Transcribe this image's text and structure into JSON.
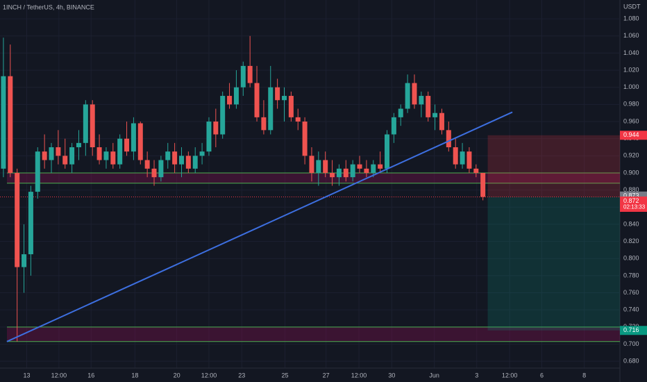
{
  "chart_data": {
    "type": "candlestick",
    "title": "1INCH / TetherUS, 4h, BINANCE",
    "y_unit": "USDT",
    "open": [
      0.905,
      1.013,
      0.9,
      0.79,
      0.805,
      0.878,
      0.925,
      0.915,
      0.93,
      0.92,
      0.91,
      0.93,
      0.935,
      0.98,
      0.93,
      0.915,
      0.925,
      0.91,
      0.94,
      0.925,
      0.958,
      0.915,
      0.905,
      0.895,
      0.915,
      0.925,
      0.91,
      0.92,
      0.905,
      0.92,
      0.925,
      0.96,
      0.945,
      0.99,
      0.98,
      1.0,
      1.025,
      1.005,
      0.965,
      0.95,
      1.0,
      0.985,
      0.99,
      0.965,
      0.96,
      0.92,
      0.9,
      0.915,
      0.9,
      0.895,
      0.905,
      0.895,
      0.91,
      0.905,
      0.9,
      0.91,
      0.905,
      0.945,
      0.965,
      0.975,
      1.005,
      0.98,
      0.99,
      0.965,
      0.97,
      0.95,
      0.93,
      0.91,
      0.925,
      0.905,
      0.9
    ],
    "high": [
      1.058,
      1.05,
      0.905,
      0.84,
      0.885,
      0.93,
      0.945,
      0.935,
      0.95,
      0.94,
      0.935,
      0.95,
      0.985,
      0.985,
      0.945,
      0.93,
      0.935,
      0.945,
      0.96,
      0.965,
      0.96,
      0.925,
      0.915,
      0.92,
      0.935,
      0.935,
      0.93,
      0.925,
      0.93,
      0.935,
      0.965,
      0.975,
      0.995,
      1.005,
      1.02,
      1.03,
      1.06,
      1.025,
      0.985,
      1.025,
      1.01,
      1.0,
      0.995,
      0.975,
      0.965,
      0.93,
      0.925,
      0.925,
      0.915,
      0.91,
      0.915,
      0.915,
      0.92,
      0.915,
      0.915,
      0.925,
      0.95,
      0.97,
      0.98,
      1.015,
      1.015,
      0.995,
      0.995,
      0.98,
      0.975,
      0.96,
      0.94,
      0.935,
      0.93,
      0.91,
      0.9
    ],
    "low": [
      0.895,
      0.895,
      0.703,
      0.76,
      0.78,
      0.87,
      0.905,
      0.9,
      0.91,
      0.905,
      0.9,
      0.915,
      0.92,
      0.92,
      0.91,
      0.905,
      0.905,
      0.905,
      0.92,
      0.915,
      0.91,
      0.895,
      0.885,
      0.89,
      0.905,
      0.9,
      0.895,
      0.9,
      0.9,
      0.91,
      0.92,
      0.93,
      0.94,
      0.975,
      0.975,
      0.99,
      1.0,
      0.96,
      0.945,
      0.945,
      0.975,
      0.96,
      0.96,
      0.95,
      0.91,
      0.89,
      0.885,
      0.895,
      0.885,
      0.885,
      0.89,
      0.89,
      0.9,
      0.895,
      0.895,
      0.9,
      0.9,
      0.935,
      0.955,
      0.97,
      0.975,
      0.965,
      0.96,
      0.95,
      0.945,
      0.925,
      0.905,
      0.905,
      0.9,
      0.895,
      0.868
    ],
    "close": [
      1.013,
      0.9,
      0.79,
      0.805,
      0.878,
      0.925,
      0.915,
      0.93,
      0.92,
      0.91,
      0.93,
      0.935,
      0.98,
      0.93,
      0.915,
      0.925,
      0.91,
      0.94,
      0.925,
      0.958,
      0.915,
      0.905,
      0.895,
      0.915,
      0.925,
      0.91,
      0.92,
      0.905,
      0.92,
      0.925,
      0.96,
      0.945,
      0.99,
      0.98,
      1.0,
      1.025,
      1.005,
      0.965,
      0.95,
      1.0,
      0.985,
      0.99,
      0.965,
      0.96,
      0.92,
      0.9,
      0.915,
      0.9,
      0.895,
      0.905,
      0.895,
      0.91,
      0.905,
      0.9,
      0.91,
      0.905,
      0.945,
      0.965,
      0.975,
      1.005,
      0.98,
      0.99,
      0.965,
      0.97,
      0.95,
      0.93,
      0.91,
      0.925,
      0.905,
      0.9,
      0.872
    ],
    "up_color": "#26a69a",
    "down_color": "#ef5350",
    "xlim": [
      -0.5,
      90
    ],
    "xticks": [
      {
        "value": 3.4,
        "label": "13"
      },
      {
        "value": 8.1,
        "label": "12:00"
      },
      {
        "value": 12.8,
        "label": "16"
      },
      {
        "value": 19.2,
        "label": "18"
      },
      {
        "value": 25.3,
        "label": "20"
      },
      {
        "value": 30.0,
        "label": "12:00"
      },
      {
        "value": 34.8,
        "label": "23"
      },
      {
        "value": 41.1,
        "label": "25"
      },
      {
        "value": 47.1,
        "label": "27"
      },
      {
        "value": 51.9,
        "label": "12:00"
      },
      {
        "value": 56.7,
        "label": "30"
      },
      {
        "value": 62.9,
        "label": "Jun"
      },
      {
        "value": 69.1,
        "label": "3"
      },
      {
        "value": 73.9,
        "label": "12:00"
      },
      {
        "value": 78.6,
        "label": "6"
      },
      {
        "value": 84.8,
        "label": "8"
      }
    ],
    "ylim": [
      0.672,
      1.102
    ],
    "yticks": [
      {
        "value": 0.68,
        "label": "0.680"
      },
      {
        "value": 0.7,
        "label": "0.700"
      },
      {
        "value": 0.72,
        "label": "0.720"
      },
      {
        "value": 0.74,
        "label": "0.740"
      },
      {
        "value": 0.76,
        "label": "0.760"
      },
      {
        "value": 0.78,
        "label": "0.780"
      },
      {
        "value": 0.8,
        "label": "0.800"
      },
      {
        "value": 0.82,
        "label": "0.820"
      },
      {
        "value": 0.84,
        "label": "0.840"
      },
      {
        "value": 0.86,
        "label": "0.860"
      },
      {
        "value": 0.88,
        "label": "0.880"
      },
      {
        "value": 0.9,
        "label": "0.900"
      },
      {
        "value": 0.92,
        "label": "0.920"
      },
      {
        "value": 0.94,
        "label": "0.940"
      },
      {
        "value": 0.96,
        "label": "0.960"
      },
      {
        "value": 0.98,
        "label": "0.980"
      },
      {
        "value": 1.0,
        "label": "1.000"
      },
      {
        "value": 1.02,
        "label": "1.020"
      },
      {
        "value": 1.04,
        "label": "1.040"
      },
      {
        "value": 1.06,
        "label": "1.060"
      },
      {
        "value": 1.08,
        "label": "1.080"
      }
    ],
    "grid": true,
    "zones": [
      {
        "low": 0.888,
        "high": 0.9
      },
      {
        "low": 0.703,
        "high": 0.72
      }
    ],
    "trendline": {
      "x": [
        0.5,
        74.3
      ],
      "y": [
        0.703,
        0.971
      ],
      "color": "#3d6fe0"
    },
    "position": {
      "x_start": 70.7,
      "stop": 0.944,
      "entry": 0.872,
      "target": 0.716
    },
    "price_tags": [
      {
        "value": 0.944,
        "label": "0.944",
        "color": "#f23645"
      },
      {
        "value": 0.873,
        "label": "0.873",
        "color": "#787b86"
      },
      {
        "value": 0.872,
        "label": "0.872",
        "color": "#f23645"
      },
      {
        "value": 0.716,
        "label": "0.716",
        "color": "#089981"
      }
    ],
    "countdown": "02:13:33"
  }
}
